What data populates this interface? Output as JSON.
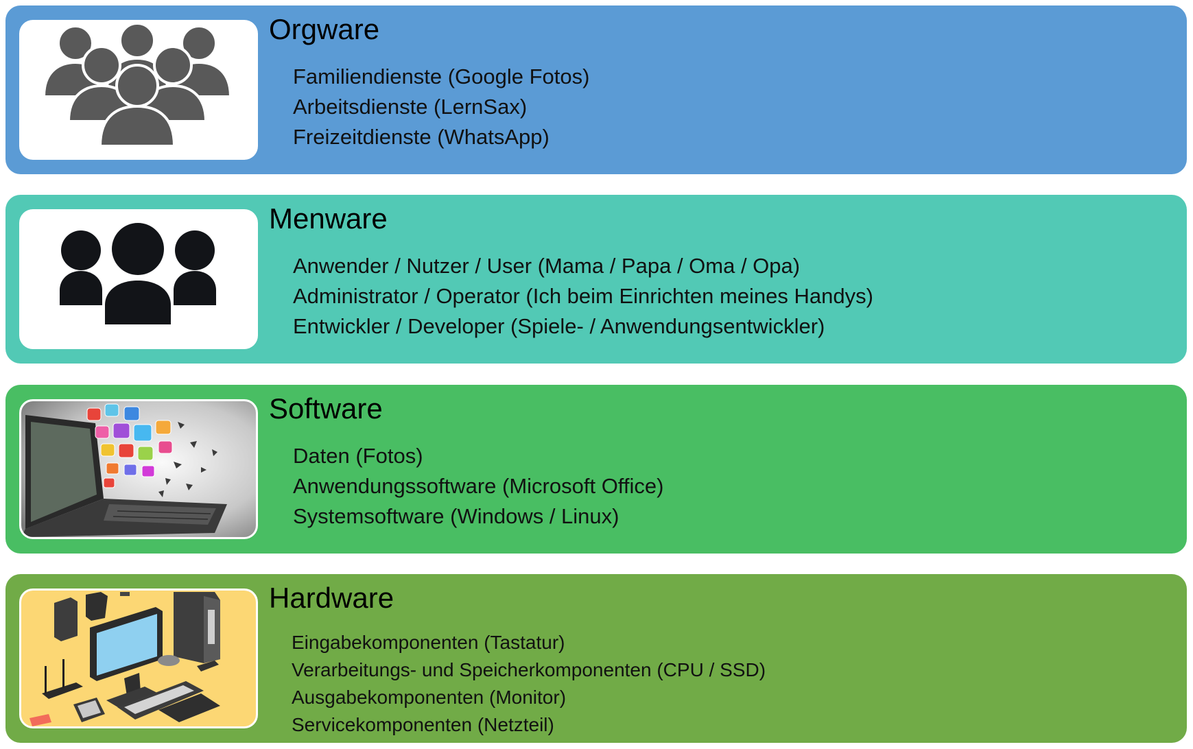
{
  "layers": [
    {
      "title": "Orgware",
      "color": "#5b9bd5",
      "icon": "group-people-icon",
      "items": [
        "Familiendienste (Google Fotos)",
        "Arbeitsdienste (LernSax)",
        "Freizeitdienste (WhatsApp)"
      ]
    },
    {
      "title": "Menware",
      "color": "#52c9b5",
      "icon": "three-users-icon",
      "items": [
        "Anwender / Nutzer / User (Mama / Papa / Oma / Opa)",
        "Administrator / Operator (Ich beim Einrichten meines Handys)",
        "Entwickler / Developer (Spiele- / Anwendungsentwickler)"
      ]
    },
    {
      "title": "Software",
      "color": "#49be63",
      "icon": "laptop-apps-illustration",
      "items": [
        "Daten (Fotos)",
        "Anwendungssoftware (Microsoft Office)",
        "Systemsoftware (Windows / Linux)"
      ]
    },
    {
      "title": "Hardware",
      "color": "#71ab47",
      "icon": "computer-hardware-illustration",
      "items": [
        "Eingabekomponenten (Tastatur)",
        "Verarbeitungs- und Speicherkomponenten (CPU / SSD)",
        "Ausgabekomponenten (Monitor)",
        "Servicekomponenten (Netzteil)"
      ]
    }
  ]
}
